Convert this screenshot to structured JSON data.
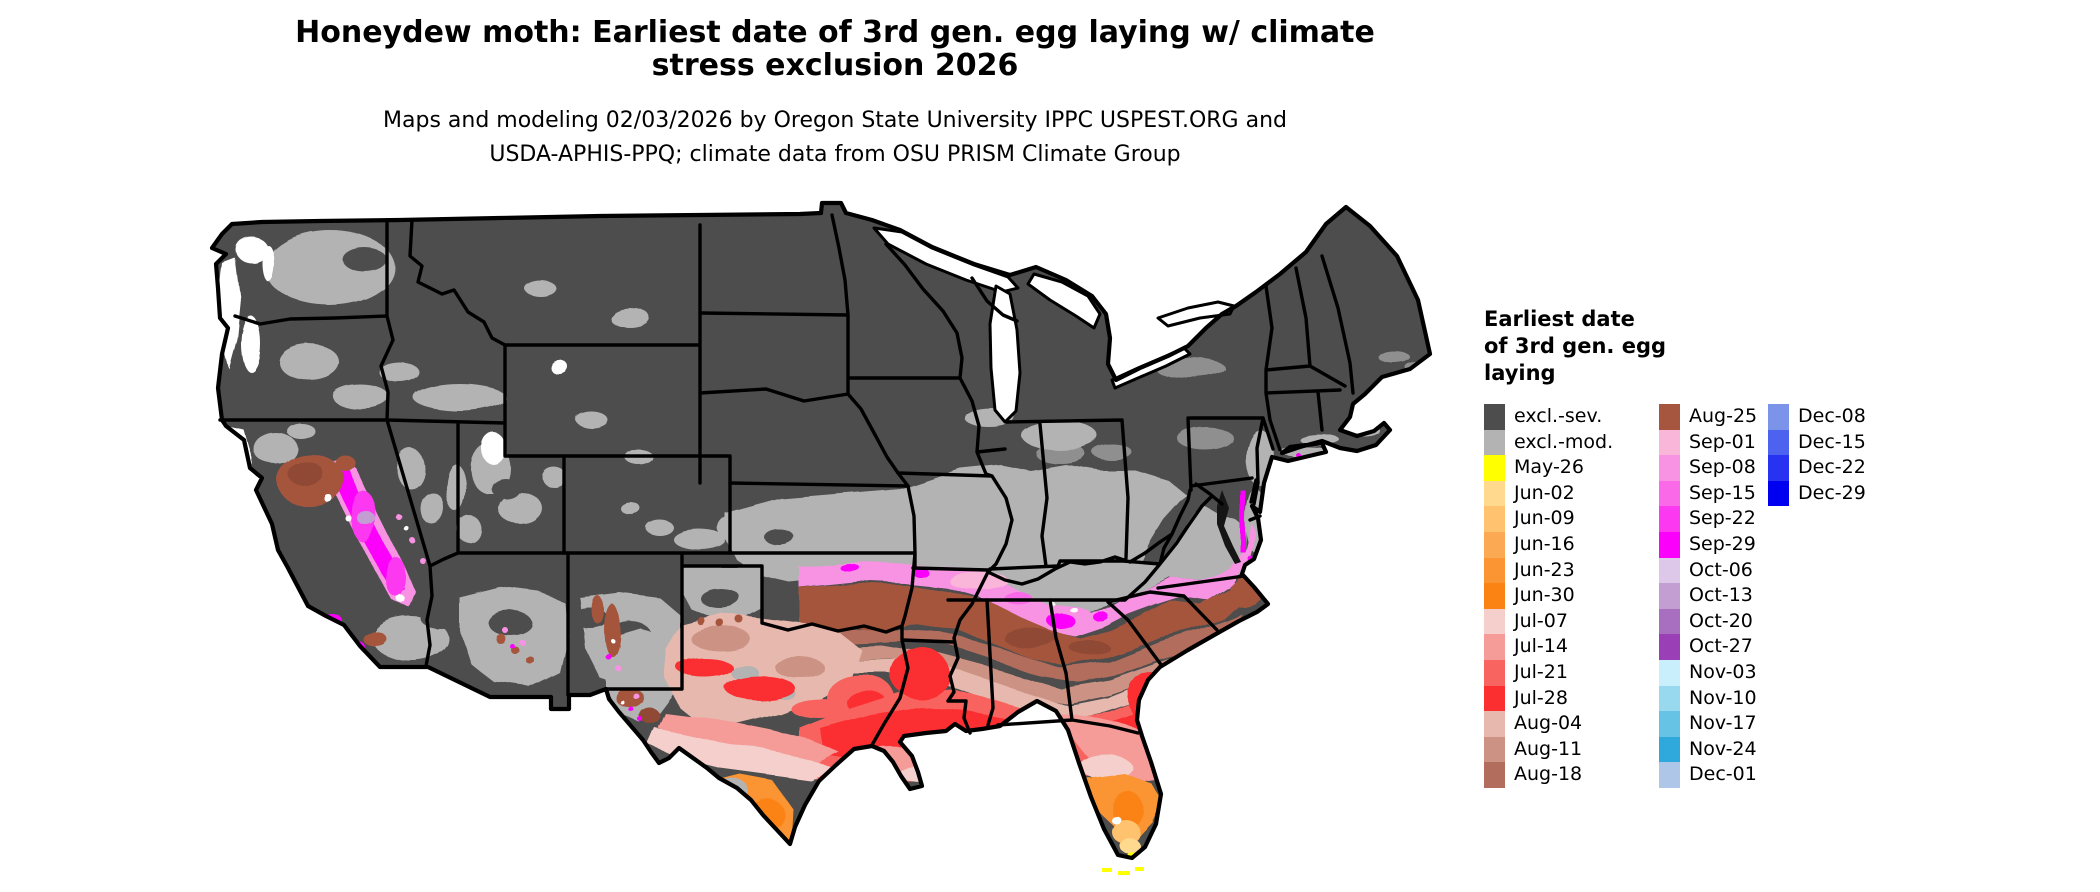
{
  "title": {
    "line1": "Honeydew moth: Earliest date of 3rd gen. egg laying w/ climate",
    "line2": "stress exclusion 2026"
  },
  "subtitle": {
    "line1": "Maps and modeling 02/03/2026 by Oregon State University IPPC USPEST.ORG and",
    "line2": "USDA-APHIS-PPQ; climate data from OSU PRISM Climate Group"
  },
  "map": {
    "region": "Contiguous United States",
    "kind": "raster choropleth of earliest 3rd generation egg-laying date",
    "no_data_color": "#ffffff",
    "state_border_color": "#000000",
    "dominant_colors": {
      "excluded_severe": "#4d4d4d",
      "excluded_moderate": "#b3b3b3"
    }
  },
  "legend": {
    "title_line1": "Earliest date",
    "title_line2": "of 3rd gen. egg",
    "title_line3": "laying",
    "columns": [
      {
        "entries": [
          {
            "label": "excl.-sev.",
            "color": "#4d4d4d"
          },
          {
            "label": "excl.-mod.",
            "color": "#b3b3b3"
          },
          {
            "label": "May-26",
            "color": "#ffff00"
          },
          {
            "label": "Jun-02",
            "color": "#ffd98e"
          },
          {
            "label": "Jun-09",
            "color": "#ffc26e"
          },
          {
            "label": "Jun-16",
            "color": "#fbaa53"
          },
          {
            "label": "Jun-23",
            "color": "#fb9433"
          },
          {
            "label": "Jun-30",
            "color": "#fb8313"
          },
          {
            "label": "Jul-07",
            "color": "#f4cfcb"
          },
          {
            "label": "Jul-14",
            "color": "#f59b98"
          },
          {
            "label": "Jul-21",
            "color": "#f8645f"
          },
          {
            "label": "Jul-28",
            "color": "#fb2e30"
          },
          {
            "label": "Aug-04",
            "color": "#e6b8ae"
          },
          {
            "label": "Aug-11",
            "color": "#cc9384"
          },
          {
            "label": "Aug-18",
            "color": "#b26d5d"
          }
        ]
      },
      {
        "entries": [
          {
            "label": "Aug-25",
            "color": "#a6553e"
          },
          {
            "label": "Sep-01",
            "color": "#fab6d9"
          },
          {
            "label": "Sep-08",
            "color": "#f893e3"
          },
          {
            "label": "Sep-15",
            "color": "#fa6ae8"
          },
          {
            "label": "Sep-22",
            "color": "#fc39f1"
          },
          {
            "label": "Sep-29",
            "color": "#fb00fb"
          },
          {
            "label": "Oct-06",
            "color": "#ddc8ea"
          },
          {
            "label": "Oct-13",
            "color": "#c39ed2"
          },
          {
            "label": "Oct-20",
            "color": "#a86fc0"
          },
          {
            "label": "Oct-27",
            "color": "#9a3fb5"
          },
          {
            "label": "Nov-03",
            "color": "#c8effb"
          },
          {
            "label": "Nov-10",
            "color": "#99d9f0"
          },
          {
            "label": "Nov-17",
            "color": "#66c3e6"
          },
          {
            "label": "Nov-24",
            "color": "#2fa8dc"
          },
          {
            "label": "Dec-01",
            "color": "#aec6e8"
          }
        ]
      },
      {
        "entries": [
          {
            "label": "Dec-08",
            "color": "#7b93e8"
          },
          {
            "label": "Dec-15",
            "color": "#4d62ee"
          },
          {
            "label": "Dec-22",
            "color": "#2833f2"
          },
          {
            "label": "Dec-29",
            "color": "#0000f0"
          }
        ]
      }
    ]
  }
}
